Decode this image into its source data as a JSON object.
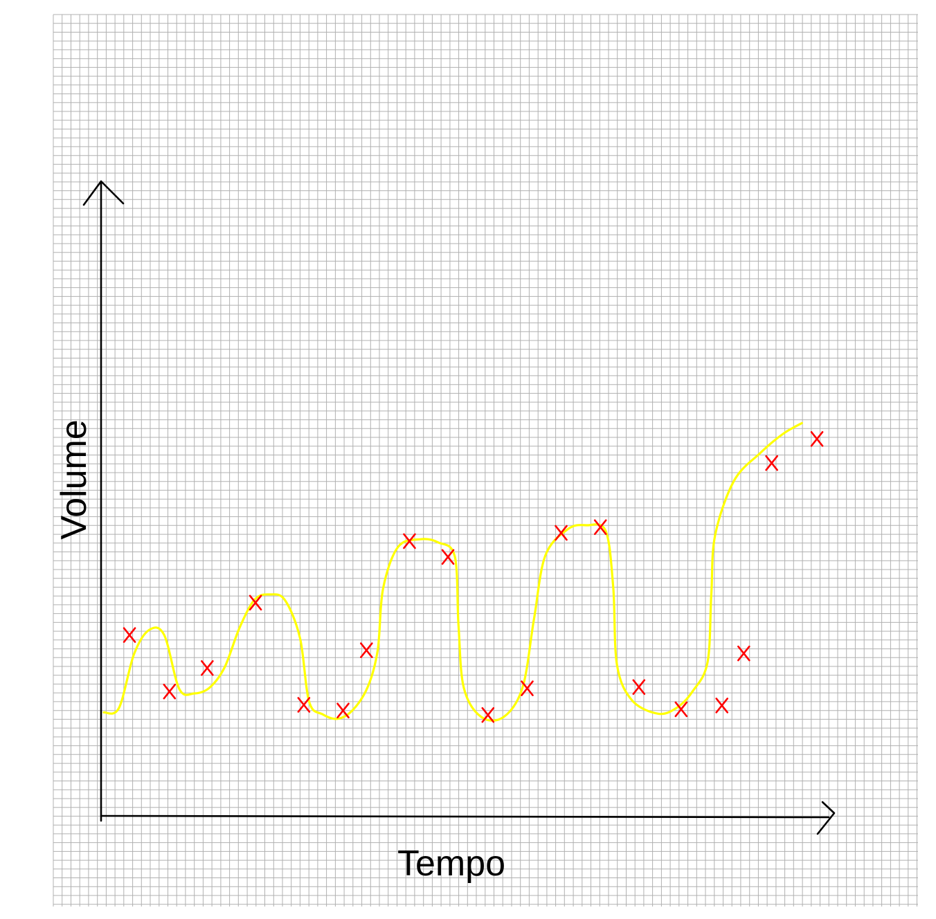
{
  "chart_data": {
    "type": "line",
    "title": "",
    "xlabel": "Tempo",
    "ylabel": "Volume",
    "grid": true,
    "xlim": [
      0,
      100
    ],
    "ylim": [
      0,
      100
    ],
    "curve_points": [
      [
        0,
        16.3
      ],
      [
        2,
        17.0
      ],
      [
        4,
        25.5
      ],
      [
        6,
        29.3
      ],
      [
        8,
        28.5
      ],
      [
        10,
        20.0
      ],
      [
        12,
        19.3
      ],
      [
        14,
        20.2
      ],
      [
        16,
        23.4
      ],
      [
        18,
        29.7
      ],
      [
        20,
        34.1
      ],
      [
        22,
        34.9
      ],
      [
        24,
        34.0
      ],
      [
        26,
        28.0
      ],
      [
        27.2,
        18.0
      ],
      [
        29,
        16.0
      ],
      [
        31,
        15.3
      ],
      [
        33,
        16.7
      ],
      [
        35,
        20.4
      ],
      [
        36.3,
        26.2
      ],
      [
        37,
        35.8
      ],
      [
        39,
        42.4
      ],
      [
        42,
        43.6
      ],
      [
        44.3,
        43.1
      ],
      [
        46.5,
        40.9
      ],
      [
        47,
        30.0
      ],
      [
        47.7,
        20.2
      ],
      [
        50,
        15.6
      ],
      [
        53,
        15.6
      ],
      [
        55.5,
        20.3
      ],
      [
        57,
        31.0
      ],
      [
        58.5,
        41.0
      ],
      [
        61.5,
        45.2
      ],
      [
        64,
        45.8
      ],
      [
        66.5,
        44.9
      ],
      [
        67.5,
        36.0
      ],
      [
        68,
        23.8
      ],
      [
        70,
        18.2
      ],
      [
        73.5,
        16.1
      ],
      [
        76,
        17.1
      ],
      [
        78,
        19.6
      ],
      [
        80,
        24.2
      ],
      [
        80.5,
        35.0
      ],
      [
        81,
        44.2
      ],
      [
        83.5,
        52.8
      ],
      [
        87,
        57.2
      ],
      [
        90,
        60.2
      ],
      [
        92.5,
        61.9
      ]
    ],
    "marked_points": [
      [
        3.4,
        28.5
      ],
      [
        8.7,
        19.6
      ],
      [
        13.7,
        23.3
      ],
      [
        20.1,
        33.6
      ],
      [
        26.5,
        17.5
      ],
      [
        31.7,
        16.6
      ],
      [
        34.8,
        26.1
      ],
      [
        40.5,
        43.3
      ],
      [
        45.6,
        40.8
      ],
      [
        50.9,
        15.9
      ],
      [
        56.1,
        20.1
      ],
      [
        60.6,
        44.6
      ],
      [
        65.8,
        45.5
      ],
      [
        70.9,
        20.3
      ],
      [
        76.5,
        16.8
      ],
      [
        81.9,
        17.4
      ],
      [
        84.8,
        25.6
      ],
      [
        88.5,
        55.6
      ],
      [
        94.5,
        59.4
      ]
    ],
    "series_color": "#ffff00",
    "marker_color": "#ff0000",
    "axis_color": "#000000",
    "grid_color": "#b0b0b0"
  }
}
